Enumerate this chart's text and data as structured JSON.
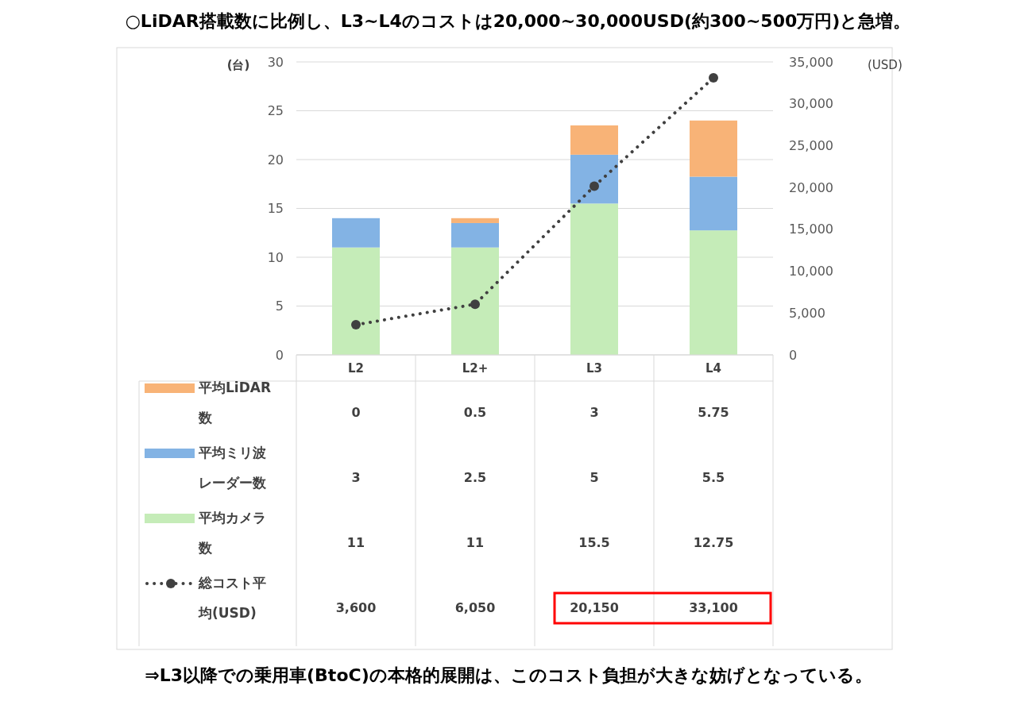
{
  "chart_data": {
    "type": "bar",
    "stacked": true,
    "title": "○LiDAR搭載数に比例し、L3~L4のコストは20,000~30,000USD(約300~500万円)と急増。",
    "categories": [
      "L2",
      "L2+",
      "L3",
      "L4"
    ],
    "series": [
      {
        "name": "平均カメラ数",
        "color": "#c5ecb8",
        "values": [
          11,
          11,
          15.5,
          12.75
        ],
        "value_labels": [
          "11",
          "11",
          "15.5",
          "12.75"
        ]
      },
      {
        "name": "平均ミリ波レーダー数",
        "color": "#83b3e4",
        "values": [
          3,
          2.5,
          5,
          5.5
        ],
        "value_labels": [
          "3",
          "2.5",
          "5",
          "5.5"
        ]
      },
      {
        "name": "平均LiDAR数",
        "color": "#f8b377",
        "values": [
          0,
          0.5,
          3,
          5.75
        ],
        "value_labels": [
          "0",
          "0.5",
          "3",
          "5.75"
        ]
      },
      {
        "name": "総コスト平均(USD)",
        "type": "line",
        "axis": "y2",
        "color": "#404040",
        "marker": "circle",
        "line_style": "dotted",
        "values": [
          3600,
          6050,
          20150,
          33100
        ],
        "value_labels": [
          "3,600",
          "6,050",
          "20,150",
          "33,100"
        ]
      }
    ],
    "ylim": [
      0,
      30
    ],
    "yticks": [
      0,
      5,
      10,
      15,
      20,
      25,
      30
    ],
    "y2lim": [
      0,
      35000
    ],
    "y2ticks": [
      0,
      {
        "value": 5000,
        "label": "5,000"
      },
      {
        "value": 10000,
        "label": "10,000"
      },
      {
        "value": 15000,
        "label": "15,000"
      },
      {
        "value": 20000,
        "label": "20,000"
      },
      {
        "value": 25000,
        "label": "25,000"
      },
      {
        "value": 30000,
        "label": "30,000"
      },
      {
        "value": 35000,
        "label": "35,000"
      }
    ],
    "ylabel": "(台)",
    "y2label": "(USD)",
    "grid": "y",
    "legend": "bottom left",
    "annotations": [
      "⇒L3以降での乗用車(BtoC)の本格的展開は、このコスト負担が大きな妨げとなっている。"
    ]
  }
}
